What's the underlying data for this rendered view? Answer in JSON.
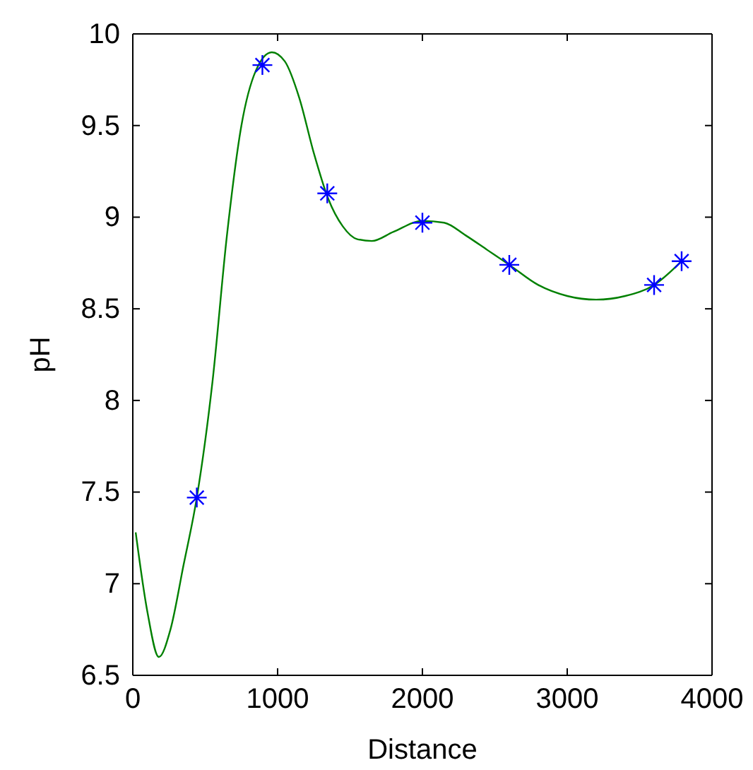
{
  "chart_data": {
    "type": "line",
    "xlabel": "Distance",
    "ylabel": "pH",
    "xlim": [
      0,
      4000
    ],
    "ylim": [
      6.5,
      10
    ],
    "xticks": [
      0,
      1000,
      2000,
      3000,
      4000
    ],
    "yticks": [
      6.5,
      7,
      7.5,
      8,
      8.5,
      9,
      9.5,
      10
    ],
    "grid": false,
    "series": [
      {
        "color": "#008000",
        "marker": "none",
        "x": [
          20,
          100,
          180,
          260,
          350,
          442,
          550,
          650,
          750,
          850,
          960,
          1050,
          1150,
          1250,
          1350,
          1450,
          1550,
          1650,
          1800,
          2000,
          2150,
          2300,
          2450,
          2600,
          2800,
          3000,
          3200,
          3400,
          3600,
          3790
        ],
        "values": [
          7.28,
          6.85,
          6.6,
          6.75,
          7.1,
          7.47,
          8.1,
          8.9,
          9.5,
          9.8,
          9.9,
          9.85,
          9.65,
          9.35,
          9.1,
          8.95,
          8.88,
          8.87,
          8.92,
          8.98,
          8.97,
          8.9,
          8.82,
          8.74,
          8.63,
          8.57,
          8.55,
          8.57,
          8.63,
          8.76
        ]
      },
      {
        "type": "scatter",
        "color": "#0000ff",
        "marker": "cross",
        "x": [
          442,
          895,
          1343,
          2000,
          2600,
          3600,
          3790
        ],
        "values": [
          7.47,
          9.83,
          9.13,
          8.97,
          8.74,
          8.63,
          8.76
        ]
      }
    ]
  }
}
